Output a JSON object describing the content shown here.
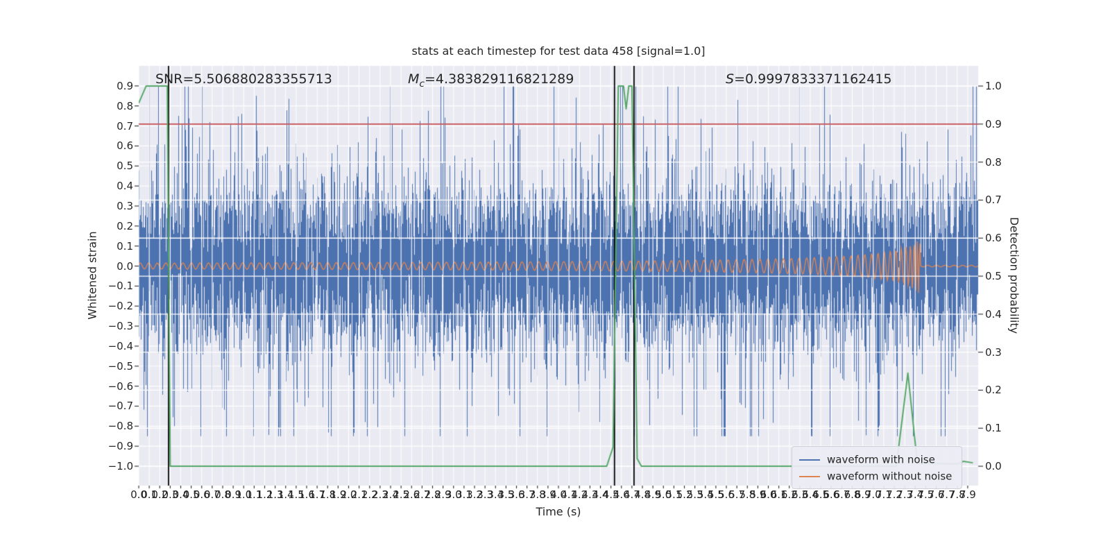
{
  "title": "stats at each timestep for test data 458 [signal=1.0]",
  "annotations": {
    "snr": "SNR=5.506880283355713",
    "mc_symbol": "M",
    "mc_subscript": "c",
    "mc_value": "=4.383829116821289",
    "s_symbol": "S",
    "s_value": "=0.9997833371162415"
  },
  "axes": {
    "xlabel": "Time (s)",
    "ylabel_left": "Whitened strain",
    "ylabel_right": "Detection probability",
    "x_tick_labels": [
      "0.0",
      "0.1",
      "0.2",
      "0.3",
      "0.4",
      "0.5",
      "0.6",
      "0.7",
      "0.8",
      "0.9",
      "1.0",
      "1.1",
      "1.2",
      "1.3",
      "1.4",
      "1.5",
      "1.6",
      "1.7",
      "1.8",
      "1.9",
      "2.0",
      "2.1",
      "2.2",
      "2.3",
      "2.4",
      "2.5",
      "2.6",
      "2.7",
      "2.8",
      "2.9",
      "3.0",
      "3.1",
      "3.2",
      "3.3",
      "3.4",
      "3.5",
      "3.6",
      "3.7",
      "3.8",
      "3.9",
      "4.0",
      "4.1",
      "4.2",
      "4.3",
      "4.4",
      "4.5",
      "4.6",
      "4.7",
      "4.8",
      "4.9",
      "5.0",
      "5.1",
      "5.2",
      "5.3",
      "5.4",
      "5.5",
      "5.6",
      "5.7",
      "5.8",
      "5.9",
      "6.0",
      "6.1",
      "6.2",
      "6.3",
      "6.4",
      "6.5",
      "6.6",
      "6.7",
      "6.8",
      "6.9",
      "7.0",
      "7.1",
      "7.2",
      "7.3",
      "7.4",
      "7.5",
      "7.6",
      "7.7",
      "7.8",
      "7.9"
    ],
    "y_tick_labels_left": [
      "0.9",
      "0.8",
      "0.7",
      "0.6",
      "0.5",
      "0.4",
      "0.3",
      "0.2",
      "0.1",
      "0.0",
      "−0.1",
      "−0.2",
      "−0.3",
      "−0.4",
      "−0.5",
      "−0.6",
      "−0.7",
      "−0.8",
      "−0.9",
      "−1.0"
    ],
    "y_tick_labels_right": [
      "1.0",
      "0.9",
      "0.8",
      "0.7",
      "0.6",
      "0.5",
      "0.4",
      "0.3",
      "0.2",
      "0.1",
      "0.0"
    ]
  },
  "legend": {
    "items": [
      {
        "label": "waveform with noise",
        "color": "#4c72b0"
      },
      {
        "label": "waveform without noise",
        "color": "#dd8452"
      }
    ]
  },
  "chart_data": {
    "type": "line",
    "title": "stats at each timestep for test data 458 [signal=1.0]",
    "xlabel": "Time (s)",
    "ylabel_left": "Whitened strain",
    "ylabel_right": "Detection probability",
    "xlim": [
      0,
      8.0
    ],
    "ylim_left": [
      -1.097,
      1.0
    ],
    "ylim_right": [
      -0.051,
      1.053
    ],
    "grid": true,
    "background_color": "#eaeaf2",
    "grid_color": "#ffffff",
    "stats": {
      "SNR": 5.506880283355713,
      "Mc": 4.383829116821289,
      "S": 0.9997833371162415,
      "signal": 1.0,
      "test_data_index": 458
    },
    "series": [
      {
        "name": "waveform with noise",
        "axis": "left",
        "color": "#4c72b0",
        "kind": "noise",
        "params": {
          "seed": 458,
          "columns": 1210,
          "samples_per_column": 7,
          "sigma": 0.2,
          "spike_probability": 0.06,
          "spike_scale": 2.5,
          "clip": [
            -0.85,
            0.9
          ]
        }
      },
      {
        "name": "waveform without noise",
        "axis": "left",
        "color": "#dd8452",
        "kind": "chirp",
        "params": {
          "t_merger": 7.45,
          "base_amplitude": 0.015,
          "amplitude_growth_exponent": 0.55,
          "amplitude_cap": 0.16,
          "base_frequency_hz": 12,
          "frequency_gain": 2.0,
          "post_merger_amplitude": 0.004
        }
      },
      {
        "name": "detection probability",
        "axis": "right",
        "color": "#55a868",
        "kind": "polyline",
        "points": [
          [
            0,
            0.955
          ],
          [
            0.07,
            1.0
          ],
          [
            0.272,
            1.0
          ],
          [
            0.3,
            0.0
          ],
          [
            4.46,
            0.0
          ],
          [
            4.52,
            0.05
          ],
          [
            4.57,
            1.0
          ],
          [
            4.62,
            1.0
          ],
          [
            4.645,
            0.94
          ],
          [
            4.67,
            1.0
          ],
          [
            4.7,
            1.0
          ],
          [
            4.75,
            0.02
          ],
          [
            4.79,
            0.0
          ],
          [
            7.22,
            0.0
          ],
          [
            7.33,
            0.245
          ],
          [
            7.42,
            0.008
          ],
          [
            7.8,
            0.006
          ],
          [
            7.86,
            0.013
          ],
          [
            7.95,
            0.009
          ]
        ]
      }
    ],
    "threshold_line": {
      "axis": "right",
      "value": 0.9,
      "color": "#c44e52"
    },
    "event_lines": {
      "color": "#000000",
      "positions": [
        0.284,
        4.534,
        4.72
      ]
    }
  }
}
